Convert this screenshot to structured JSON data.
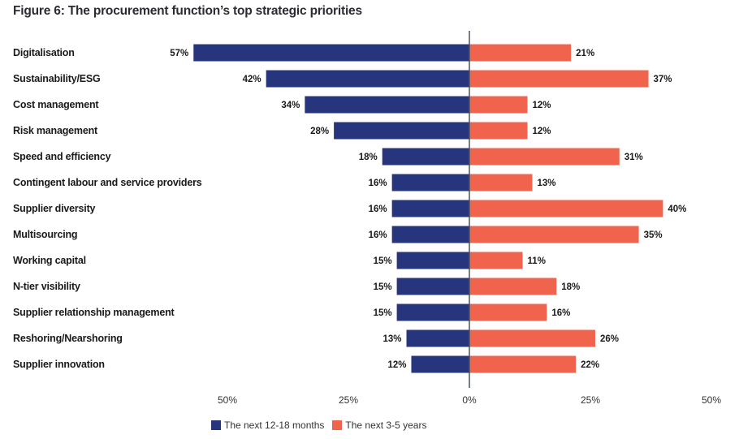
{
  "title": "Figure 6: The procurement function’s top strategic priorities",
  "colors": {
    "near_term": "#27367c",
    "long_term": "#f0644d",
    "axis": "#4a5560"
  },
  "chart_data": {
    "type": "bar",
    "orientation": "horizontal-diverging",
    "title": "Figure 6: The procurement function’s top strategic priorities",
    "xlabel": "",
    "ylabel": "",
    "xlim": [
      -50,
      50
    ],
    "x_ticks": [
      "50%",
      "25%",
      "0%",
      "25%",
      "50%"
    ],
    "grid": false,
    "legend_position": "bottom-center",
    "categories": [
      "Digitalisation",
      "Sustainability/ESG",
      "Cost management",
      "Risk management",
      "Speed and efficiency",
      "Contingent labour and service providers",
      "Supplier diversity",
      "Multisourcing",
      "Working capital",
      "N-tier visibility",
      "Supplier relationship management",
      "Reshoring/Nearshoring",
      "Supplier innovation"
    ],
    "series": [
      {
        "name": "The next 12-18 months",
        "side": "left",
        "values": [
          57,
          42,
          34,
          28,
          18,
          16,
          16,
          16,
          15,
          15,
          15,
          13,
          12
        ]
      },
      {
        "name": "The next 3-5 years",
        "side": "right",
        "values": [
          21,
          37,
          12,
          12,
          31,
          13,
          40,
          35,
          11,
          18,
          16,
          26,
          22
        ]
      }
    ],
    "value_suffix": "%"
  }
}
